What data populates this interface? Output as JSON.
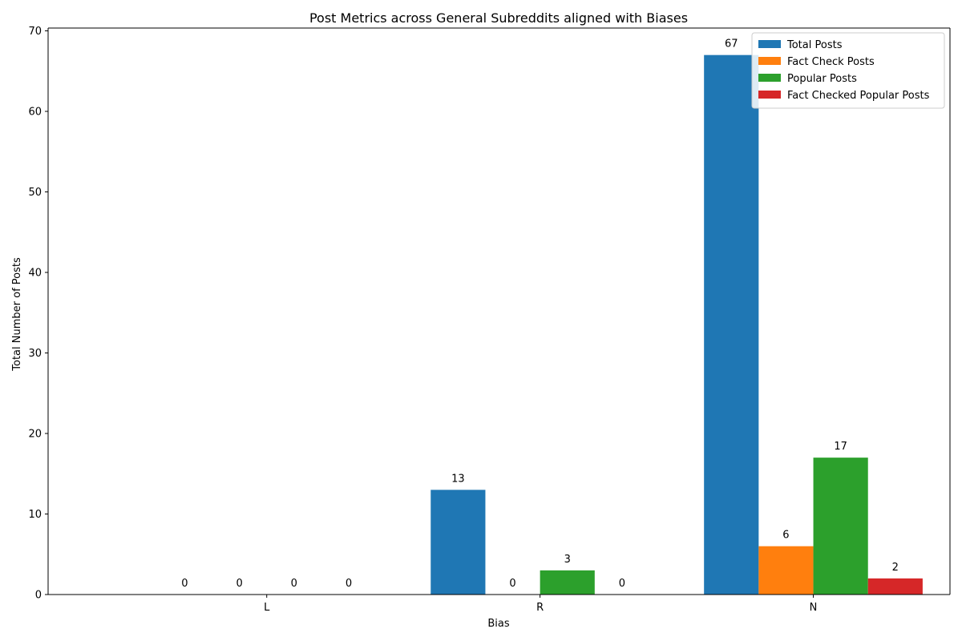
{
  "chart_data": {
    "type": "bar",
    "title": "Post Metrics across General Subreddits aligned with Biases",
    "xlabel": "Bias",
    "ylabel": "Total Number of Posts",
    "categories": [
      "L",
      "R",
      "N"
    ],
    "ylim": [
      0,
      70.35
    ],
    "yticks": [
      0,
      10,
      20,
      30,
      40,
      50,
      60,
      70
    ],
    "legend_position": "top-right",
    "grid": false,
    "series": [
      {
        "name": "Total Posts",
        "color": "#1f77b4",
        "values": [
          0,
          13,
          67
        ]
      },
      {
        "name": "Fact Check Posts",
        "color": "#ff7f0e",
        "values": [
          0,
          0,
          6
        ]
      },
      {
        "name": "Popular Posts",
        "color": "#2ca02c",
        "values": [
          0,
          3,
          17
        ]
      },
      {
        "name": "Fact Checked Popular Posts",
        "color": "#d62728",
        "values": [
          0,
          0,
          2
        ]
      }
    ]
  }
}
